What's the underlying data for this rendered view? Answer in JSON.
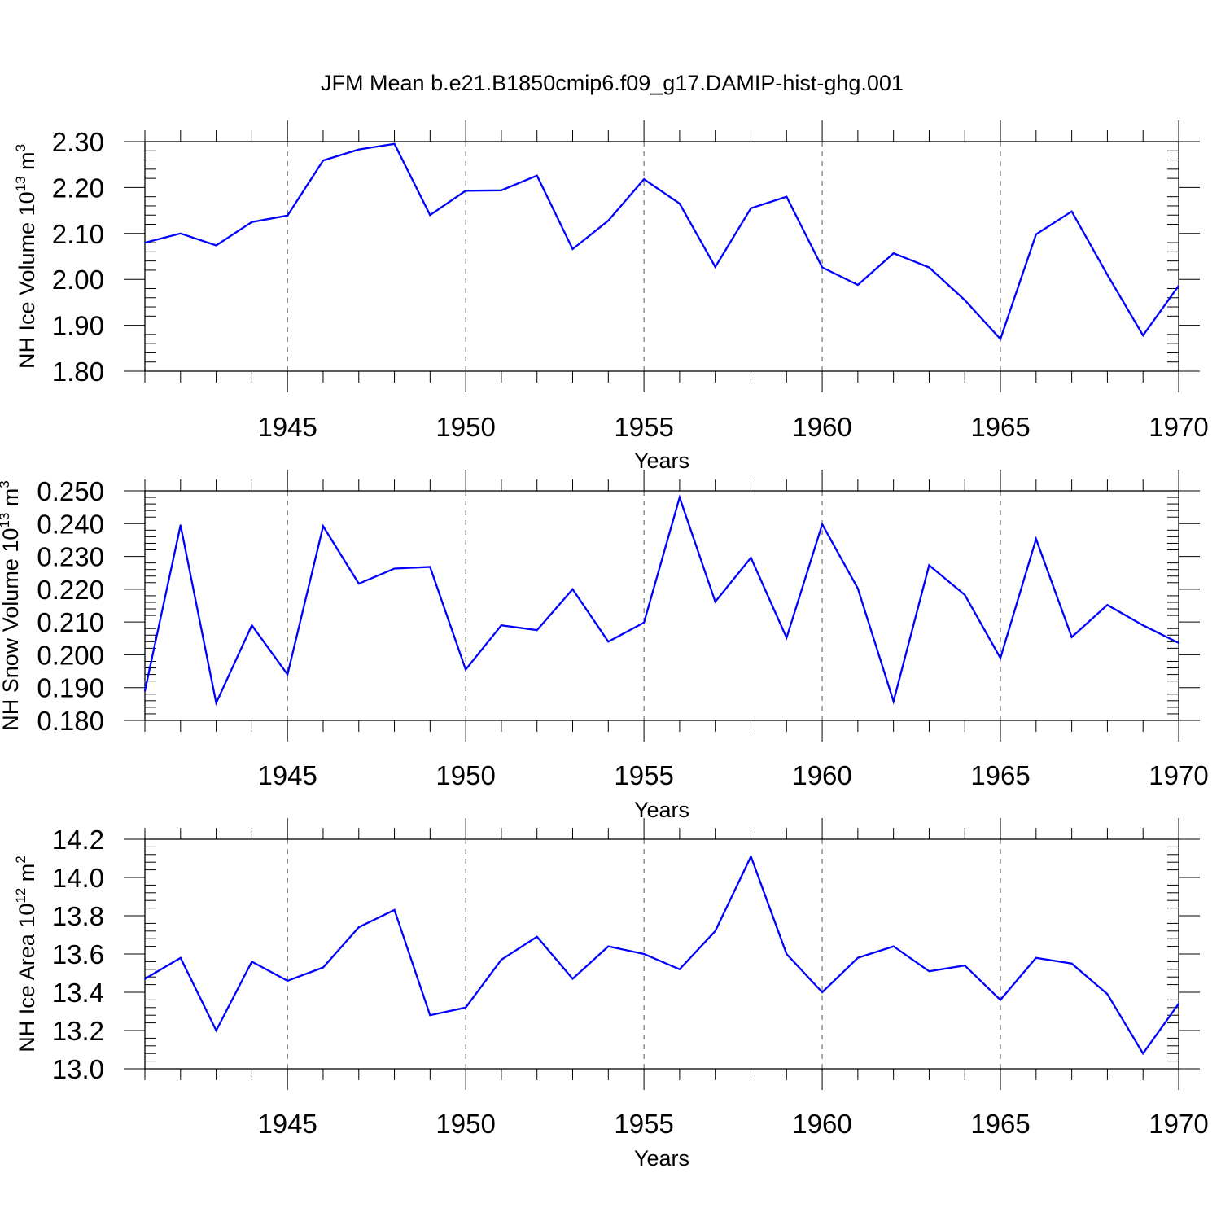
{
  "title": "JFM Mean b.e21.B1850cmip6.f09_g17.DAMIP-hist-ghg.001",
  "colors": {
    "line": "#0000ff",
    "axis": "#000000",
    "grid": "#555555"
  },
  "chart_data": [
    {
      "type": "line",
      "name": "ice-volume",
      "ylabel": "NH Ice Volume 10",
      "ylabel_exp": "13",
      "ylabel_unit": " m",
      "ylabel_unit_exp": "3",
      "xlabel": "Years",
      "xlim": [
        1941,
        1970
      ],
      "ylim": [
        1.8,
        2.3
      ],
      "grid": "vertical dashed at labeled years",
      "x_ticks": [
        "1945",
        "1950",
        "1955",
        "1960",
        "1965",
        "1970"
      ],
      "y_ticks": [
        "1.80",
        "1.90",
        "2.00",
        "2.10",
        "2.20",
        "2.30"
      ],
      "x": [
        1941,
        1942,
        1943,
        1944,
        1945,
        1946,
        1947,
        1948,
        1949,
        1950,
        1951,
        1952,
        1953,
        1954,
        1955,
        1956,
        1957,
        1958,
        1959,
        1960,
        1961,
        1962,
        1963,
        1964,
        1965,
        1966,
        1967,
        1968,
        1969,
        1970
      ],
      "values": [
        2.08,
        2.1,
        2.074,
        2.125,
        2.139,
        2.259,
        2.283,
        2.295,
        2.14,
        2.193,
        2.194,
        2.226,
        2.066,
        2.128,
        2.218,
        2.165,
        2.027,
        2.155,
        2.18,
        2.026,
        1.988,
        2.057,
        2.026,
        1.955,
        1.87,
        2.098,
        2.148,
        2.01,
        1.878,
        1.986
      ]
    },
    {
      "type": "line",
      "name": "snow-volume",
      "ylabel": "NH Snow Volume 10",
      "ylabel_exp": "13",
      "ylabel_unit": " m",
      "ylabel_unit_exp": "3",
      "xlabel": "Years",
      "xlim": [
        1941,
        1970
      ],
      "ylim": [
        0.18,
        0.25
      ],
      "grid": "vertical dashed at labeled years",
      "x_ticks": [
        "1945",
        "1950",
        "1955",
        "1960",
        "1965",
        "1970"
      ],
      "y_ticks": [
        "0.180",
        "0.190",
        "0.200",
        "0.210",
        "0.220",
        "0.230",
        "0.240",
        "0.250"
      ],
      "x": [
        1941,
        1942,
        1943,
        1944,
        1945,
        1946,
        1947,
        1948,
        1949,
        1950,
        1951,
        1952,
        1953,
        1954,
        1955,
        1956,
        1957,
        1958,
        1959,
        1960,
        1961,
        1962,
        1963,
        1964,
        1965,
        1966,
        1967,
        1968,
        1969,
        1970
      ],
      "values": [
        0.189,
        0.2395,
        0.1853,
        0.209,
        0.194,
        0.2392,
        0.2217,
        0.2263,
        0.2268,
        0.1955,
        0.209,
        0.2075,
        0.22,
        0.204,
        0.2098,
        0.248,
        0.2162,
        0.2296,
        0.2052,
        0.2398,
        0.2202,
        0.1858,
        0.2273,
        0.2183,
        0.199,
        0.2353,
        0.2054,
        0.2152,
        0.209,
        0.2036
      ]
    },
    {
      "type": "line",
      "name": "ice-area",
      "ylabel": "NH Ice Area 10",
      "ylabel_exp": "12",
      "ylabel_unit": " m",
      "ylabel_unit_exp": "2",
      "xlabel": "Years",
      "xlim": [
        1941,
        1970
      ],
      "ylim": [
        13.0,
        14.2
      ],
      "grid": "vertical dashed at labeled years",
      "x_ticks": [
        "1945",
        "1950",
        "1955",
        "1960",
        "1965",
        "1970"
      ],
      "y_ticks": [
        "13.0",
        "13.2",
        "13.4",
        "13.6",
        "13.8",
        "14.0",
        "14.2"
      ],
      "x": [
        1941,
        1942,
        1943,
        1944,
        1945,
        1946,
        1947,
        1948,
        1949,
        1950,
        1951,
        1952,
        1953,
        1954,
        1955,
        1956,
        1957,
        1958,
        1959,
        1960,
        1961,
        1962,
        1963,
        1964,
        1965,
        1966,
        1967,
        1968,
        1969,
        1970
      ],
      "values": [
        13.47,
        13.58,
        13.2,
        13.56,
        13.46,
        13.53,
        13.74,
        13.83,
        13.28,
        13.32,
        13.57,
        13.69,
        13.47,
        13.64,
        13.6,
        13.52,
        13.72,
        14.11,
        13.6,
        13.4,
        13.58,
        13.64,
        13.51,
        13.54,
        13.36,
        13.58,
        13.55,
        13.39,
        13.08,
        13.34
      ]
    }
  ]
}
